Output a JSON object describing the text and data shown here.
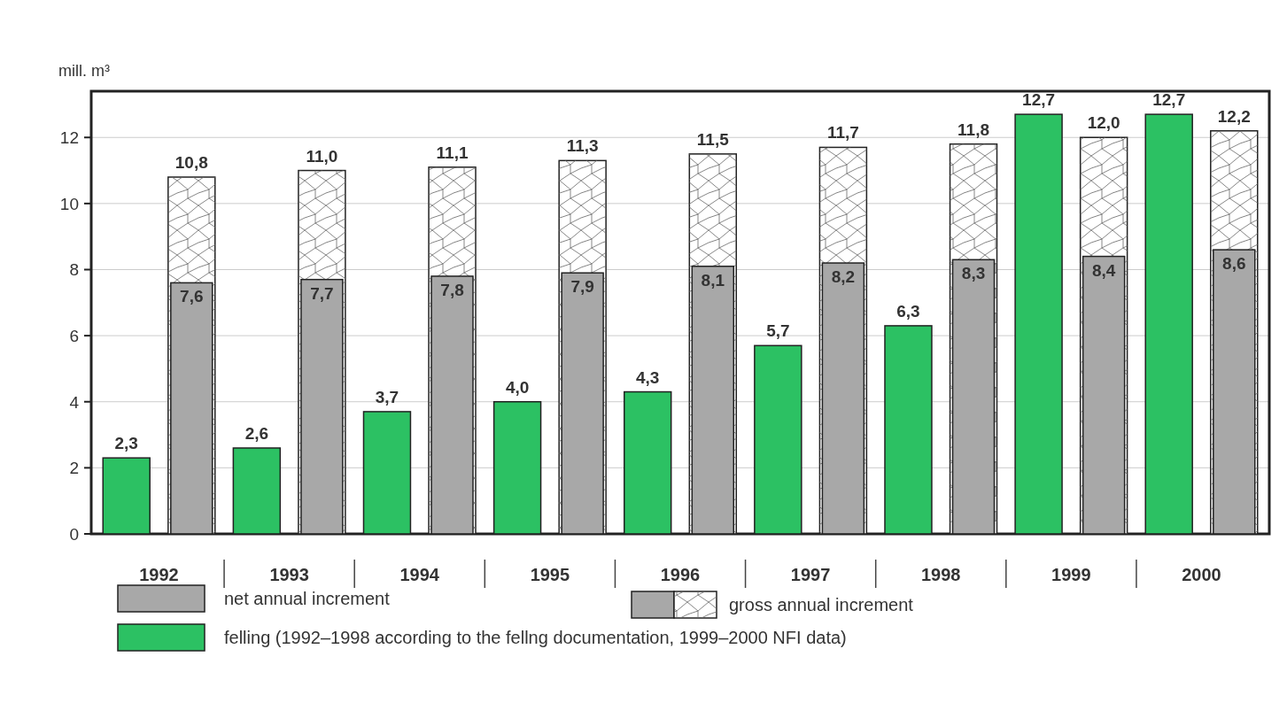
{
  "chart_data": {
    "type": "bar",
    "ylabel": "mill. m³",
    "categories": [
      "1992",
      "1993",
      "1994",
      "1995",
      "1996",
      "1997",
      "1998",
      "1999",
      "2000"
    ],
    "legend": "bottom",
    "grid": "y",
    "ylim": [
      0,
      13.4
    ],
    "yticks": [
      0,
      2,
      4,
      6,
      8,
      10,
      12
    ],
    "series": [
      {
        "name": "felling (1992–1998 according to the fellng documentation, 1999–2000 NFI data)",
        "color": "#2cc163",
        "values": [
          2.3,
          2.6,
          3.7,
          4.0,
          4.3,
          5.7,
          6.3,
          12.7,
          12.7
        ],
        "value_labels": [
          "2,3",
          "2,6",
          "3,7",
          "4,0",
          "4,3",
          "5,7",
          "6,3",
          "12,7",
          "12,7"
        ]
      },
      {
        "name": "gross annual increment",
        "color": "#ffffff",
        "values": [
          10.8,
          11.0,
          11.1,
          11.3,
          11.5,
          11.7,
          11.8,
          12.0,
          12.2
        ],
        "value_labels": [
          "10,8",
          "11,0",
          "11,1",
          "11,3",
          "11,5",
          "11,7",
          "11,8",
          "12,0",
          "12,2"
        ]
      },
      {
        "name": "net annual increment",
        "color": "#a8a8a8",
        "values": [
          7.6,
          7.7,
          7.8,
          7.9,
          8.1,
          8.2,
          8.3,
          8.4,
          8.6
        ],
        "value_labels": [
          "7,6",
          "7,7",
          "7,8",
          "7,9",
          "8,1",
          "8,2",
          "8,3",
          "8,4",
          "8,6"
        ]
      }
    ]
  }
}
